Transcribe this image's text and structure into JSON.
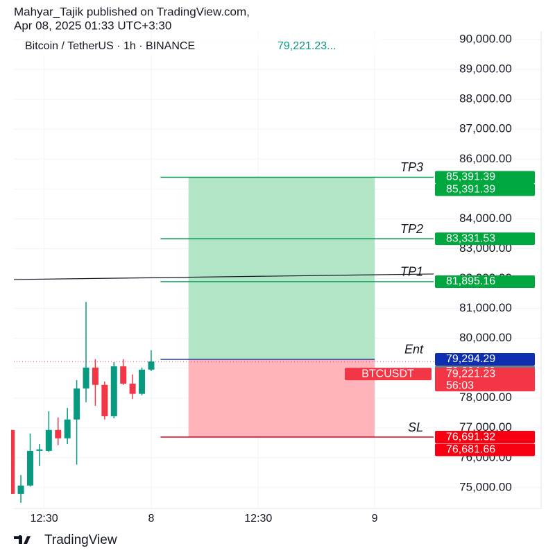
{
  "header": {
    "line1": "Mahyar_Tajik published on TradingView.com,",
    "line2": "Apr 08, 2025 01:33 UTC+3:30"
  },
  "footer": {
    "brand": "TradingView"
  },
  "chart_data": {
    "type": "candlestick",
    "title": "Bitcoin / TetherUS · 1h · BINANCE",
    "last_price": "79,221.23...",
    "x": [
      0,
      1,
      2,
      3,
      4,
      5,
      6,
      7,
      8,
      9,
      10,
      11,
      12,
      13,
      14,
      15
    ],
    "open": [
      76930,
      74790,
      75070,
      76230,
      76230,
      76930,
      76650,
      77280,
      78320,
      79020,
      78440,
      77390,
      79060,
      78480,
      78140,
      78950
    ],
    "high": [
      76930,
      75420,
      76810,
      76460,
      77560,
      77350,
      77670,
      78600,
      81220,
      79300,
      78550,
      79200,
      79300,
      78790,
      79020,
      79600
    ],
    "low": [
      74790,
      74490,
      75030,
      75720,
      76190,
      76420,
      76460,
      75770,
      77860,
      77740,
      77280,
      77320,
      78440,
      77970,
      78090,
      78900
    ],
    "close": [
      74790,
      75070,
      76230,
      76280,
      76930,
      76650,
      77280,
      78320,
      79020,
      78440,
      77390,
      79060,
      78480,
      78140,
      78950,
      79221.23
    ],
    "up_color": "#089981",
    "down_color": "#f23645",
    "xlim": [
      0.25,
      45.33
    ],
    "xticks": [
      {
        "value": 3.5,
        "label": "12:30"
      },
      {
        "value": 15,
        "label": "8"
      },
      {
        "value": 26.5,
        "label": "12:30"
      },
      {
        "value": 39,
        "label": "9"
      }
    ],
    "ylim": [
      74300,
      90280
    ],
    "yticks": [
      {
        "value": 75000,
        "label": "75,000.00"
      },
      {
        "value": 76000,
        "label": "76,000.00"
      },
      {
        "value": 77000,
        "label": "77,000.00"
      },
      {
        "value": 78000,
        "label": "78,000.00"
      },
      {
        "value": 79000,
        "label": "79,000.00"
      },
      {
        "value": 80000,
        "label": "80,000.00"
      },
      {
        "value": 81000,
        "label": "81,000.00"
      },
      {
        "value": 82000,
        "label": "82,000.00"
      },
      {
        "value": 83000,
        "label": "83,000.00"
      },
      {
        "value": 84000,
        "label": "84,000.00"
      },
      {
        "value": 85000,
        "label": "85,000.00"
      },
      {
        "value": 86000,
        "label": "86,000.00"
      },
      {
        "value": 87000,
        "label": "87,000.00"
      },
      {
        "value": 88000,
        "label": "88,000.00"
      },
      {
        "value": 89000,
        "label": "89,000.00"
      },
      {
        "value": 90000,
        "label": "90,000.00"
      }
    ],
    "grid": true,
    "current_price": 79221.23,
    "trendline": {
      "x": [
        0.25,
        45.33
      ],
      "values": [
        81966,
        82152
      ]
    },
    "levels_start": 16,
    "levels": [
      {
        "name": "TP3",
        "value": 85391.39,
        "color": "#089950"
      },
      {
        "name": "TP2",
        "value": 83331.53,
        "color": "#089950"
      },
      {
        "name": "TP1",
        "value": 81895.16,
        "color": "#089950"
      },
      {
        "name": "Ent",
        "value": 79294.29,
        "color": "#1e3ea8"
      },
      {
        "name": "SL",
        "value": 76691.32,
        "color": "#e0001b"
      }
    ],
    "position": {
      "start": 19,
      "end": 39,
      "profit_color": "#b2e5c6",
      "loss_color": "#ffb3ba"
    },
    "price_tags": [
      {
        "value": 85391.39,
        "label": "85,391.39",
        "color": "#00a63e"
      },
      {
        "value": 85391.39,
        "label": "85,391.39",
        "color": "#00a63e"
      },
      {
        "value": 83331.53,
        "label": "83,331.53",
        "color": "#00a63e"
      },
      {
        "value": 81895.16,
        "label": "81,895.16",
        "color": "#00a63e"
      },
      {
        "value": 79294.29,
        "label": "79,294.29",
        "color": "#0d2fb0"
      },
      {
        "value": 79294.29,
        "label": "79,294.29",
        "color": "#787b86"
      },
      {
        "value": 79221.23,
        "label": "79,221.23",
        "color": "#f23645",
        "symbol": "BTCUSDT",
        "countdown": "56:03"
      },
      {
        "value": 76691.32,
        "label": "76,691.32",
        "color": "#f70012"
      },
      {
        "value": 76681.66,
        "label": "76,681.66",
        "color": "#f70012"
      }
    ]
  }
}
